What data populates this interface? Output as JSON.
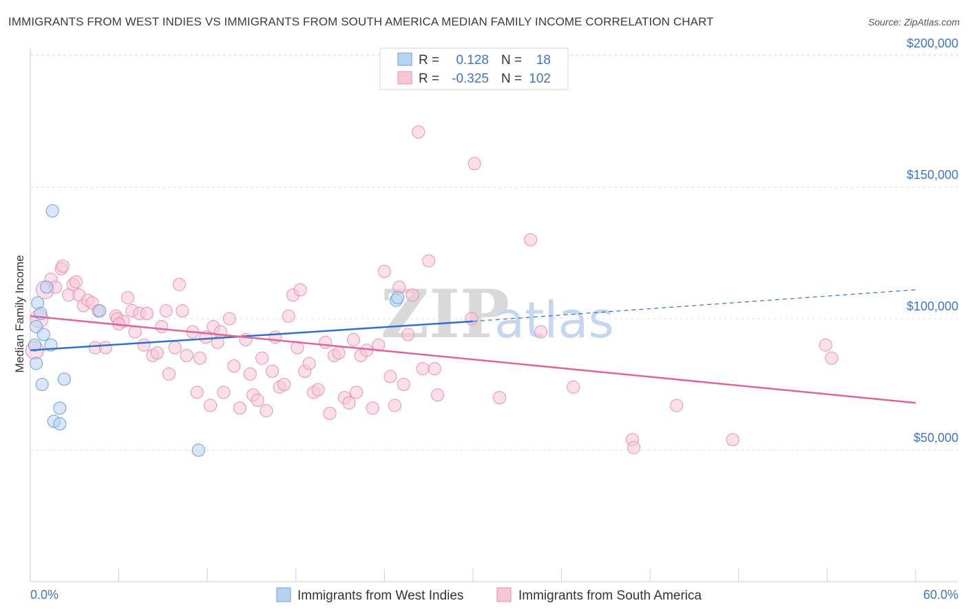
{
  "header": {
    "title": "IMMIGRANTS FROM WEST INDIES VS IMMIGRANTS FROM SOUTH AMERICA MEDIAN FAMILY INCOME CORRELATION CHART",
    "source": "Source: ZipAtlas.com"
  },
  "watermark": {
    "zip": "ZIP",
    "atlas": "atlas"
  },
  "chart_data": {
    "type": "scatter",
    "title": "IMMIGRANTS FROM WEST INDIES VS IMMIGRANTS FROM SOUTH AMERICA MEDIAN FAMILY INCOME CORRELATION CHART",
    "ylabel": "Median Family Income",
    "xlabel": "",
    "xlim": [
      0,
      60
    ],
    "ylim": [
      5000,
      210000
    ],
    "x_tick_labels": {
      "min": "0.0%",
      "max": "60.0%"
    },
    "y_ticks": [
      {
        "value": 50000,
        "label": "$50,000"
      },
      {
        "value": 100000,
        "label": "$100,000"
      },
      {
        "value": 150000,
        "label": "$150,000"
      },
      {
        "value": 200000,
        "label": "$200,000"
      }
    ],
    "legend": [
      {
        "r_label": "R =",
        "r_value": "0.128",
        "n_label": "N =",
        "n_value": "18"
      },
      {
        "r_label": "R =",
        "r_value": "-0.325",
        "n_label": "N =",
        "n_value": "102"
      }
    ],
    "series": [
      {
        "name": "Immigrants from West Indies",
        "color": "#6a9fe0",
        "fill": "#b8d2f2",
        "line_color": "#2f6fcf",
        "trend": {
          "x0": 0,
          "y0": 88000,
          "x1": 30,
          "y1": 99000,
          "dash_x1": 60,
          "dash_y1": 111000
        },
        "points": [
          [
            0.3,
            90000
          ],
          [
            0.4,
            97000
          ],
          [
            0.4,
            83000
          ],
          [
            0.5,
            106000
          ],
          [
            0.7,
            102000
          ],
          [
            0.8,
            75000
          ],
          [
            0.9,
            94000
          ],
          [
            1.1,
            112000
          ],
          [
            1.4,
            90000
          ],
          [
            1.5,
            141000
          ],
          [
            1.6,
            61000
          ],
          [
            2.0,
            66000
          ],
          [
            2.0,
            60000
          ],
          [
            2.3,
            77000
          ],
          [
            4.7,
            103000
          ],
          [
            11.4,
            50000
          ],
          [
            24.8,
            107000
          ],
          [
            24.9,
            108000
          ]
        ]
      },
      {
        "name": "Immigrants from South America",
        "color": "#ea8fb0",
        "fill": "#f7c6d7",
        "line_color": "#e0649a",
        "trend": {
          "x0": 0,
          "y0": 101000,
          "x1": 60,
          "y1": 68000
        },
        "points": [
          [
            0.3,
            88000
          ],
          [
            0.6,
            100000
          ],
          [
            1.0,
            111000
          ],
          [
            1.4,
            115000
          ],
          [
            1.7,
            112000
          ],
          [
            2.1,
            119000
          ],
          [
            2.2,
            120000
          ],
          [
            2.6,
            109000
          ],
          [
            2.9,
            113000
          ],
          [
            3.1,
            114000
          ],
          [
            3.3,
            109000
          ],
          [
            3.6,
            105000
          ],
          [
            3.9,
            107000
          ],
          [
            4.2,
            106000
          ],
          [
            4.4,
            89000
          ],
          [
            4.6,
            103000
          ],
          [
            5.1,
            89000
          ],
          [
            5.8,
            101000
          ],
          [
            5.9,
            100000
          ],
          [
            6.3,
            99000
          ],
          [
            6.6,
            108000
          ],
          [
            6.9,
            103000
          ],
          [
            7.1,
            95000
          ],
          [
            7.4,
            102000
          ],
          [
            7.7,
            90000
          ],
          [
            7.9,
            102000
          ],
          [
            8.3,
            86000
          ],
          [
            8.6,
            87000
          ],
          [
            8.9,
            97000
          ],
          [
            9.2,
            103000
          ],
          [
            9.4,
            79000
          ],
          [
            9.8,
            89000
          ],
          [
            10.1,
            113000
          ],
          [
            10.3,
            103000
          ],
          [
            10.6,
            86000
          ],
          [
            11.0,
            95000
          ],
          [
            11.3,
            72000
          ],
          [
            11.5,
            85000
          ],
          [
            11.9,
            93000
          ],
          [
            12.2,
            67000
          ],
          [
            12.4,
            97000
          ],
          [
            12.7,
            91000
          ],
          [
            12.9,
            95000
          ],
          [
            13.1,
            72000
          ],
          [
            13.5,
            100000
          ],
          [
            13.8,
            82000
          ],
          [
            14.2,
            66000
          ],
          [
            14.6,
            92000
          ],
          [
            14.9,
            79000
          ],
          [
            15.1,
            71000
          ],
          [
            15.4,
            69000
          ],
          [
            15.7,
            85000
          ],
          [
            16.0,
            65000
          ],
          [
            16.4,
            80000
          ],
          [
            16.6,
            93000
          ],
          [
            16.9,
            74000
          ],
          [
            17.2,
            75000
          ],
          [
            17.5,
            101000
          ],
          [
            17.8,
            109000
          ],
          [
            18.1,
            89000
          ],
          [
            18.3,
            111000
          ],
          [
            18.6,
            80000
          ],
          [
            18.9,
            83000
          ],
          [
            19.2,
            72000
          ],
          [
            19.5,
            73000
          ],
          [
            20.0,
            91000
          ],
          [
            20.3,
            64000
          ],
          [
            20.6,
            86000
          ],
          [
            20.9,
            87000
          ],
          [
            21.3,
            70000
          ],
          [
            21.6,
            68000
          ],
          [
            21.9,
            92000
          ],
          [
            22.1,
            72000
          ],
          [
            22.4,
            86000
          ],
          [
            22.8,
            88000
          ],
          [
            23.2,
            66000
          ],
          [
            23.6,
            90000
          ],
          [
            24.0,
            118000
          ],
          [
            24.4,
            78000
          ],
          [
            24.7,
            67000
          ],
          [
            25.0,
            112000
          ],
          [
            25.3,
            75000
          ],
          [
            25.6,
            94000
          ],
          [
            25.9,
            109000
          ],
          [
            26.3,
            171000
          ],
          [
            26.6,
            81000
          ],
          [
            27.0,
            122000
          ],
          [
            27.4,
            81000
          ],
          [
            27.6,
            71000
          ],
          [
            29.9,
            100000
          ],
          [
            30.1,
            159000
          ],
          [
            31.8,
            70000
          ],
          [
            33.9,
            130000
          ],
          [
            34.6,
            95000
          ],
          [
            36.8,
            74000
          ],
          [
            40.8,
            54000
          ],
          [
            40.9,
            51000
          ],
          [
            43.8,
            67000
          ],
          [
            47.6,
            54000
          ],
          [
            53.9,
            90000
          ],
          [
            54.3,
            85000
          ],
          [
            6.0,
            98000
          ]
        ]
      }
    ]
  }
}
